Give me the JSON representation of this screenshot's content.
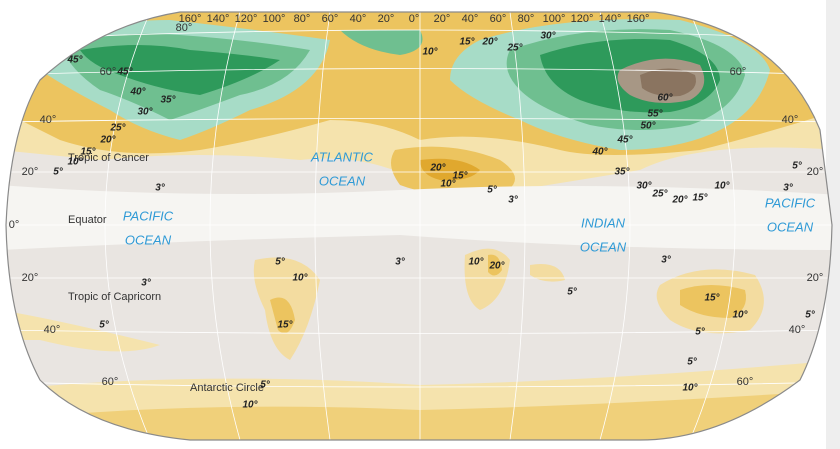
{
  "graticule": {
    "longitudes": [
      "160°",
      "140°",
      "120°",
      "100°",
      "80°",
      "60°",
      "40°",
      "20°",
      "0°",
      "20°",
      "40°",
      "60°",
      "80°",
      "100°",
      "120°",
      "140°",
      "160°"
    ],
    "latitudes_left": [
      "80°",
      "60°",
      "40°",
      "20°",
      "0°",
      "20°",
      "40°",
      "60°"
    ],
    "latitudes_right": [
      "60°",
      "40°",
      "20°",
      "20°",
      "40°",
      "60°"
    ]
  },
  "lines": [
    "Tropic of Cancer",
    "Equator",
    "Tropic of Capricorn",
    "Antarctic Circle"
  ],
  "oceans": [
    {
      "lines": [
        "PACIFIC",
        "OCEAN"
      ]
    },
    {
      "lines": [
        "ATLANTIC",
        "OCEAN"
      ]
    },
    {
      "lines": [
        "INDIAN",
        "OCEAN"
      ]
    },
    {
      "lines": [
        "PACIFIC",
        "OCEAN"
      ]
    }
  ],
  "contours": [
    "45°",
    "45°",
    "40°",
    "35°",
    "30°",
    "25°",
    "20°",
    "15°",
    "10°",
    "5°",
    "10°",
    "15°",
    "20°",
    "25°",
    "30°",
    "60°",
    "55°",
    "50°",
    "45°",
    "40°",
    "35°",
    "30°",
    "25°",
    "20°",
    "15°",
    "10°",
    "20°",
    "15°",
    "10°",
    "5°",
    "3°",
    "3°",
    "5°",
    "3°",
    "3°",
    "3°",
    "3°",
    "5°",
    "10°",
    "15°",
    "10°",
    "20°",
    "5°",
    "15°",
    "10°",
    "5°",
    "5°",
    "5°",
    "5°",
    "10°",
    "5°",
    "10°"
  ]
}
